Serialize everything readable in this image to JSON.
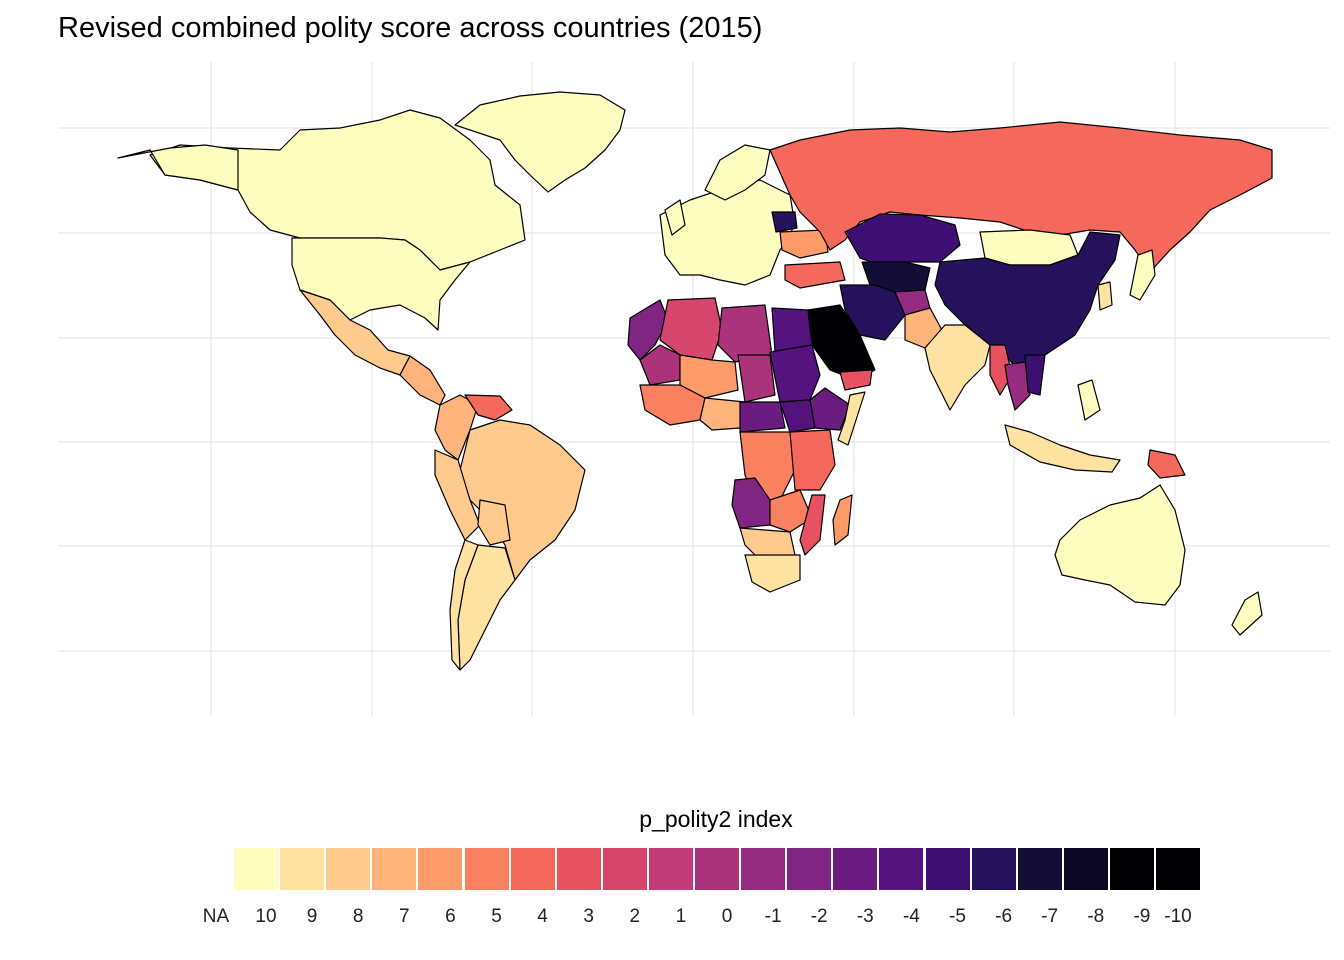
{
  "title": "Revised combined polity score across countries (2015)",
  "legend": {
    "title": "p_polity2 index",
    "entries": [
      {
        "label": "NA",
        "color": "#FCFDBF"
      },
      {
        "label": "10",
        "color": "#FCFDBF"
      },
      {
        "label": "9",
        "color": "#FDE2A2"
      },
      {
        "label": "8",
        "color": "#FECA8D"
      },
      {
        "label": "7",
        "color": "#FEB37B"
      },
      {
        "label": "6",
        "color": "#FD9A6A"
      },
      {
        "label": "5",
        "color": "#FA815F"
      },
      {
        "label": "4",
        "color": "#F4695C"
      },
      {
        "label": "3",
        "color": "#E75263"
      },
      {
        "label": "2",
        "color": "#D6456C"
      },
      {
        "label": "1",
        "color": "#C03A76"
      },
      {
        "label": "0",
        "color": "#AB337C"
      },
      {
        "label": "-1",
        "color": "#952C80"
      },
      {
        "label": "-2",
        "color": "#802582"
      },
      {
        "label": "-3",
        "color": "#6A1C81"
      },
      {
        "label": "-4",
        "color": "#55137D"
      },
      {
        "label": "-5",
        "color": "#3E0F72"
      },
      {
        "label": "-6",
        "color": "#26125C"
      },
      {
        "label": "-7",
        "color": "#140E36"
      },
      {
        "label": "-8",
        "color": "#0B0724"
      },
      {
        "label": "-9",
        "color": "#000004"
      }
    ]
  },
  "legend_label_last": "-10",
  "countries": [
    {
      "name": "Canada",
      "score": 10
    },
    {
      "name": "United States",
      "score": 10
    },
    {
      "name": "Greenland",
      "score": null
    },
    {
      "name": "Mexico",
      "score": 8
    },
    {
      "name": "Brazil",
      "score": 8
    },
    {
      "name": "Argentina",
      "score": 9
    },
    {
      "name": "Venezuela",
      "score": 4
    },
    {
      "name": "Russia",
      "score": 4
    },
    {
      "name": "China",
      "score": -7
    },
    {
      "name": "Mongolia",
      "score": 10
    },
    {
      "name": "India",
      "score": 9
    },
    {
      "name": "Saudi Arabia",
      "score": -10
    },
    {
      "name": "Iran",
      "score": -7
    },
    {
      "name": "Kazakhstan",
      "score": -6
    },
    {
      "name": "Australia",
      "score": 10
    },
    {
      "name": "Algeria",
      "score": 2
    },
    {
      "name": "Libya",
      "score": 0
    },
    {
      "name": "Egypt",
      "score": -4
    },
    {
      "name": "Sudan",
      "score": -4
    },
    {
      "name": "Ethiopia",
      "score": -3
    },
    {
      "name": "DR Congo",
      "score": 5
    },
    {
      "name": "Angola",
      "score": -2
    },
    {
      "name": "South Africa",
      "score": 9
    },
    {
      "name": "Madagascar",
      "score": 6
    },
    {
      "name": "Indonesia",
      "score": 9
    },
    {
      "name": "Papua New Guinea",
      "score": 4
    }
  ]
}
